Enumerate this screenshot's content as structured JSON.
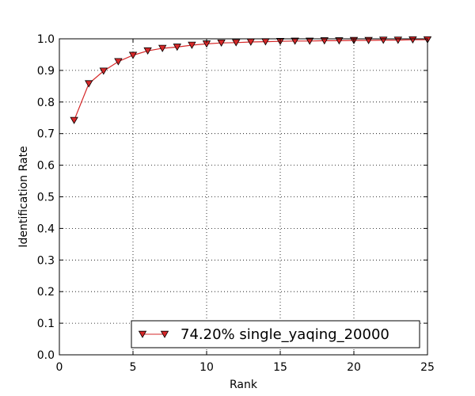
{
  "chart_data": {
    "type": "line",
    "title": "",
    "xlabel": "Rank",
    "ylabel": "Identification Rate",
    "xlim": [
      0,
      25
    ],
    "ylim": [
      0.0,
      1.0
    ],
    "grid": true,
    "legend_position": "lower-right",
    "x_ticks": [
      "0",
      "5",
      "10",
      "15",
      "20",
      "25"
    ],
    "y_ticks": [
      "0.0",
      "0.1",
      "0.2",
      "0.3",
      "0.4",
      "0.5",
      "0.6",
      "0.7",
      "0.8",
      "0.9",
      "1.0"
    ],
    "x": [
      1,
      2,
      3,
      4,
      5,
      6,
      7,
      8,
      9,
      10,
      11,
      12,
      13,
      14,
      15,
      16,
      17,
      18,
      19,
      20,
      21,
      22,
      23,
      24,
      25
    ],
    "series": [
      {
        "name": "74.20% single_yaqing_20000",
        "color": "#d62728",
        "marker": "triangle-down",
        "values": [
          0.742,
          0.858,
          0.898,
          0.928,
          0.948,
          0.962,
          0.97,
          0.974,
          0.98,
          0.984,
          0.987,
          0.988,
          0.99,
          0.991,
          0.992,
          0.993,
          0.993,
          0.994,
          0.994,
          0.995,
          0.995,
          0.996,
          0.996,
          0.997,
          0.997
        ]
      }
    ]
  }
}
